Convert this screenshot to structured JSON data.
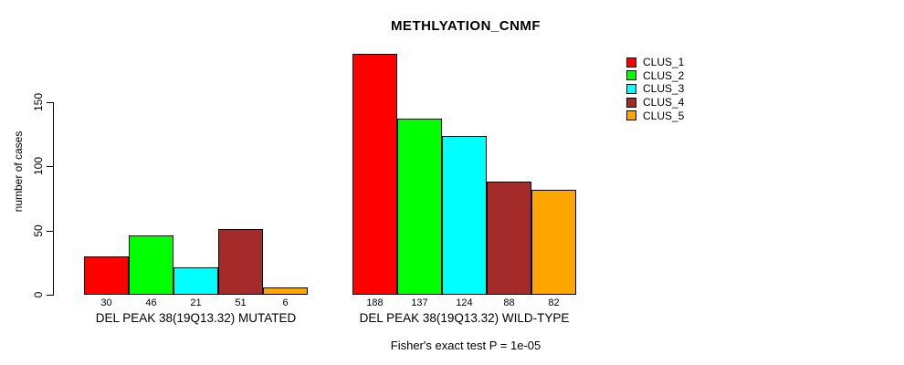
{
  "chart_data": {
    "type": "bar",
    "title": "METHLYATION_CNMF",
    "ylabel": "number of cases",
    "xlabel": "",
    "ylim": [
      0,
      190
    ],
    "yticks": [
      0,
      50,
      100,
      150
    ],
    "grid": false,
    "legend_position": "right",
    "series_names": [
      "CLUS_1",
      "CLUS_2",
      "CLUS_3",
      "CLUS_4",
      "CLUS_5"
    ],
    "series_colors": [
      "#FF0000",
      "#00FF00",
      "#00FFFF",
      "#A52A2A",
      "#FFA500"
    ],
    "groups": [
      {
        "label": "DEL PEAK 38(19Q13.32) MUTATED",
        "values": [
          30,
          46,
          21,
          51,
          6
        ]
      },
      {
        "label": "DEL PEAK 38(19Q13.32) WILD-TYPE",
        "values": [
          188,
          137,
          124,
          88,
          82
        ]
      }
    ],
    "annotation": "Fisher's exact test P = 1e-05"
  }
}
